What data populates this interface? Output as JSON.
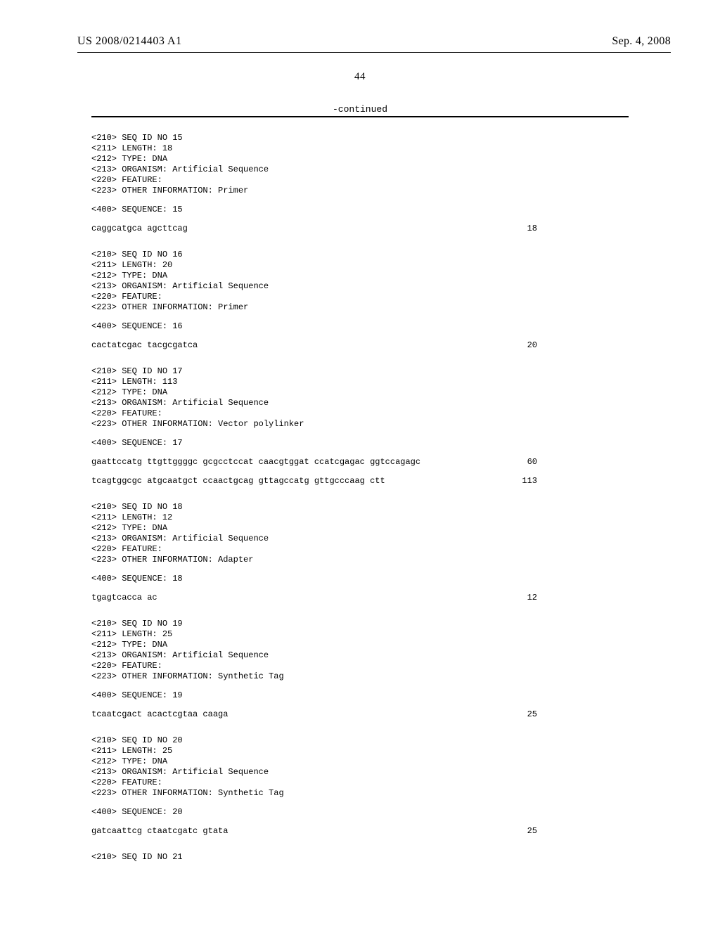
{
  "header": {
    "publication_number": "US 2008/0214403 A1",
    "publication_date": "Sep. 4, 2008"
  },
  "page_number": "44",
  "continued_label": "-continued",
  "sequences": [
    {
      "meta": [
        "<210> SEQ ID NO 15",
        "<211> LENGTH: 18",
        "<212> TYPE: DNA",
        "<213> ORGANISM: Artificial Sequence",
        "<220> FEATURE:",
        "<223> OTHER INFORMATION: Primer"
      ],
      "seq_label": "<400> SEQUENCE: 15",
      "lines": [
        {
          "text": "caggcatgca agcttcag",
          "num": "18"
        }
      ]
    },
    {
      "meta": [
        "<210> SEQ ID NO 16",
        "<211> LENGTH: 20",
        "<212> TYPE: DNA",
        "<213> ORGANISM: Artificial Sequence",
        "<220> FEATURE:",
        "<223> OTHER INFORMATION: Primer"
      ],
      "seq_label": "<400> SEQUENCE: 16",
      "lines": [
        {
          "text": "cactatcgac tacgcgatca",
          "num": "20"
        }
      ]
    },
    {
      "meta": [
        "<210> SEQ ID NO 17",
        "<211> LENGTH: 113",
        "<212> TYPE: DNA",
        "<213> ORGANISM: Artificial Sequence",
        "<220> FEATURE:",
        "<223> OTHER INFORMATION: Vector polylinker"
      ],
      "seq_label": "<400> SEQUENCE: 17",
      "lines": [
        {
          "text": "gaattccatg ttgttggggc gcgcctccat caacgtggat ccatcgagac ggtccagagc",
          "num": "60"
        },
        {
          "text": "tcagtggcgc atgcaatgct ccaactgcag gttagccatg gttgcccaag ctt",
          "num": "113"
        }
      ]
    },
    {
      "meta": [
        "<210> SEQ ID NO 18",
        "<211> LENGTH: 12",
        "<212> TYPE: DNA",
        "<213> ORGANISM: Artificial Sequence",
        "<220> FEATURE:",
        "<223> OTHER INFORMATION: Adapter"
      ],
      "seq_label": "<400> SEQUENCE: 18",
      "lines": [
        {
          "text": "tgagtcacca ac",
          "num": "12"
        }
      ]
    },
    {
      "meta": [
        "<210> SEQ ID NO 19",
        "<211> LENGTH: 25",
        "<212> TYPE: DNA",
        "<213> ORGANISM: Artificial Sequence",
        "<220> FEATURE:",
        "<223> OTHER INFORMATION: Synthetic Tag"
      ],
      "seq_label": "<400> SEQUENCE: 19",
      "lines": [
        {
          "text": "tcaatcgact acactcgtaa caaga",
          "num": "25"
        }
      ]
    },
    {
      "meta": [
        "<210> SEQ ID NO 20",
        "<211> LENGTH: 25",
        "<212> TYPE: DNA",
        "<213> ORGANISM: Artificial Sequence",
        "<220> FEATURE:",
        "<223> OTHER INFORMATION: Synthetic Tag"
      ],
      "seq_label": "<400> SEQUENCE: 20",
      "lines": [
        {
          "text": "gatcaattcg ctaatcgatc gtata",
          "num": "25"
        }
      ]
    }
  ],
  "trailing_meta": "<210> SEQ ID NO 21"
}
